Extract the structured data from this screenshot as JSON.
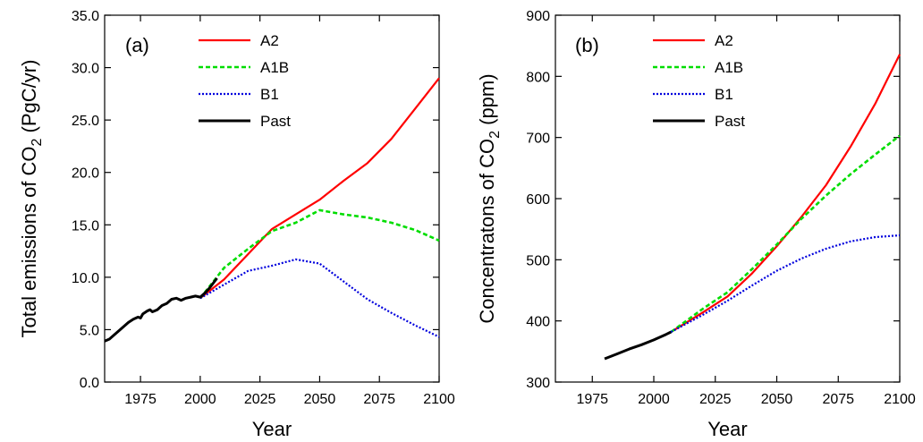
{
  "chart_data": [
    {
      "type": "line",
      "panel_label": "(a)",
      "xlabel": "Year",
      "ylabel_pre": "Total emissions of CO",
      "ylabel_sub": "2",
      "ylabel_post": " (PgC/yr)",
      "xlim": [
        1960,
        2100
      ],
      "ylim": [
        0,
        35
      ],
      "xticks": [
        1975,
        2000,
        2025,
        2050,
        2075,
        2100
      ],
      "yticks": [
        0,
        5,
        10,
        15,
        20,
        25,
        30,
        35
      ],
      "ytick_labels": [
        "0.0",
        "5.0",
        "10.0",
        "15.0",
        "20.0",
        "25.0",
        "30.0",
        "35.0"
      ],
      "legend_position": "top",
      "series": [
        {
          "name": "A2",
          "color": "#ff0000",
          "style": "solid",
          "x": [
            2000,
            2010,
            2020,
            2030,
            2040,
            2050,
            2060,
            2070,
            2080,
            2090,
            2100
          ],
          "y": [
            8.0,
            9.8,
            12.2,
            14.6,
            16.0,
            17.4,
            19.2,
            20.9,
            23.2,
            26.1,
            29.0
          ]
        },
        {
          "name": "A1B",
          "color": "#00dd00",
          "style": "dashed",
          "x": [
            2000,
            2010,
            2020,
            2030,
            2040,
            2050,
            2060,
            2070,
            2080,
            2090,
            2100
          ],
          "y": [
            8.0,
            10.9,
            12.7,
            14.4,
            15.2,
            16.4,
            16.0,
            15.7,
            15.2,
            14.5,
            13.5
          ]
        },
        {
          "name": "B1",
          "color": "#0000dd",
          "style": "dotted",
          "x": [
            2000,
            2010,
            2020,
            2030,
            2040,
            2050,
            2060,
            2070,
            2080,
            2090,
            2100
          ],
          "y": [
            8.0,
            9.3,
            10.6,
            11.1,
            11.7,
            11.3,
            9.6,
            7.9,
            6.6,
            5.4,
            4.3
          ]
        },
        {
          "name": "Past",
          "color": "#000000",
          "style": "solid-thick",
          "x": [
            1960,
            1962,
            1964,
            1966,
            1968,
            1970,
            1972,
            1974,
            1975,
            1976,
            1978,
            1979,
            1980,
            1982,
            1984,
            1986,
            1988,
            1990,
            1992,
            1994,
            1996,
            1998,
            2000,
            2002,
            2004,
            2006,
            2007
          ],
          "y": [
            3.9,
            4.1,
            4.5,
            4.9,
            5.3,
            5.7,
            6.0,
            6.2,
            6.1,
            6.5,
            6.8,
            6.9,
            6.7,
            6.9,
            7.3,
            7.5,
            7.9,
            8.0,
            7.8,
            8.0,
            8.1,
            8.2,
            8.1,
            8.5,
            9.0,
            9.6,
            9.9
          ]
        }
      ]
    },
    {
      "type": "line",
      "panel_label": "(b)",
      "xlabel": "Year",
      "ylabel_pre": "Concentratons of CO",
      "ylabel_sub": "2",
      "ylabel_post": " (ppm)",
      "xlim": [
        1960,
        2100
      ],
      "ylim": [
        300,
        900
      ],
      "xticks": [
        1975,
        2000,
        2025,
        2050,
        2075,
        2100
      ],
      "yticks": [
        300,
        400,
        500,
        600,
        700,
        800,
        900
      ],
      "ytick_labels": [
        "300",
        "400",
        "500",
        "600",
        "700",
        "800",
        "900"
      ],
      "legend_position": "top",
      "series": [
        {
          "name": "A2",
          "color": "#ff0000",
          "style": "solid",
          "x": [
            2007,
            2020,
            2030,
            2040,
            2050,
            2060,
            2070,
            2080,
            2090,
            2100
          ],
          "y": [
            382,
            414,
            440,
            478,
            522,
            570,
            622,
            685,
            755,
            836
          ]
        },
        {
          "name": "A1B",
          "color": "#00dd00",
          "style": "dashed",
          "x": [
            2007,
            2020,
            2030,
            2040,
            2050,
            2060,
            2070,
            2080,
            2090,
            2100
          ],
          "y": [
            382,
            420,
            447,
            485,
            525,
            567,
            605,
            640,
            672,
            703
          ]
        },
        {
          "name": "B1",
          "color": "#0000dd",
          "style": "dotted",
          "x": [
            2007,
            2020,
            2030,
            2040,
            2050,
            2060,
            2070,
            2080,
            2090,
            2100
          ],
          "y": [
            382,
            410,
            433,
            458,
            482,
            502,
            518,
            530,
            537,
            540
          ]
        },
        {
          "name": "Past",
          "color": "#000000",
          "style": "solid-thick",
          "x": [
            1980,
            1985,
            1990,
            1995,
            2000,
            2005,
            2007
          ],
          "y": [
            338,
            346,
            354,
            361,
            369,
            378,
            382
          ]
        }
      ]
    }
  ]
}
